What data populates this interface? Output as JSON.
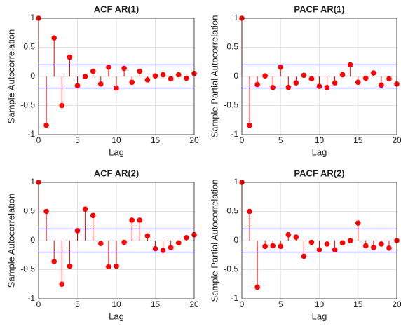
{
  "chart_data": [
    {
      "type": "stem",
      "title": "ACF AR(1)",
      "xlabel": "Lag",
      "ylabel": "Sample Autocorrelation",
      "color": "#ff0000",
      "bounds_color": "#0000ff",
      "x": [
        0,
        1,
        2,
        3,
        4,
        5,
        6,
        7,
        8,
        9,
        10,
        11,
        12,
        13,
        14,
        15,
        16,
        17,
        18,
        19,
        20
      ],
      "values": [
        1,
        -0.84,
        0.66,
        -0.5,
        0.33,
        -0.16,
        0.0,
        0.09,
        -0.13,
        0.16,
        -0.2,
        0.14,
        -0.1,
        0.09,
        -0.06,
        0.01,
        0.03,
        -0.04,
        0.03,
        -0.03,
        0.05
      ],
      "bounds": [
        0.2,
        -0.2
      ],
      "xlim": [
        0,
        20
      ],
      "ylim": [
        -1,
        1
      ],
      "xticks": [
        0,
        5,
        10,
        15,
        20
      ],
      "yticks": [
        -1,
        -0.5,
        0,
        0.5,
        1
      ],
      "grid": true
    },
    {
      "type": "stem",
      "title": "PACF AR(1)",
      "xlabel": "Lag",
      "ylabel": "Sample Partial Autocorrelation",
      "color": "#ff0000",
      "bounds_color": "#0000ff",
      "x": [
        0,
        1,
        2,
        3,
        4,
        5,
        6,
        7,
        8,
        9,
        10,
        11,
        12,
        13,
        14,
        15,
        16,
        17,
        18,
        19,
        20
      ],
      "values": [
        1,
        -0.84,
        -0.14,
        0.01,
        -0.19,
        0.16,
        -0.19,
        -0.11,
        0.02,
        -0.04,
        -0.17,
        -0.19,
        -0.11,
        0.03,
        0.2,
        -0.1,
        -0.03,
        0.06,
        -0.15,
        -0.04,
        -0.13
      ],
      "bounds": [
        0.2,
        -0.2
      ],
      "xlim": [
        0,
        20
      ],
      "ylim": [
        -1,
        1
      ],
      "xticks": [
        0,
        5,
        10,
        15,
        20
      ],
      "yticks": [
        -1,
        -0.5,
        0,
        0.5,
        1
      ],
      "grid": true
    },
    {
      "type": "stem",
      "title": "ACF AR(2)",
      "xlabel": "Lag",
      "ylabel": "Sample Autocorrelation",
      "color": "#ff0000",
      "bounds_color": "#0000ff",
      "x": [
        0,
        1,
        2,
        3,
        4,
        5,
        6,
        7,
        8,
        9,
        10,
        11,
        12,
        13,
        14,
        15,
        16,
        17,
        18,
        19,
        20
      ],
      "values": [
        1,
        0.5,
        -0.36,
        -0.75,
        -0.44,
        0.17,
        0.54,
        0.43,
        -0.05,
        -0.45,
        -0.44,
        -0.03,
        0.35,
        0.35,
        0.08,
        -0.14,
        -0.17,
        -0.12,
        -0.04,
        0.05,
        0.1
      ],
      "bounds": [
        0.2,
        -0.2
      ],
      "xlim": [
        0,
        20
      ],
      "ylim": [
        -1,
        1
      ],
      "xticks": [
        0,
        5,
        10,
        15,
        20
      ],
      "yticks": [
        -1,
        -0.5,
        0,
        0.5,
        1
      ],
      "grid": true
    },
    {
      "type": "stem",
      "title": "PACF AR(2)",
      "xlabel": "Lag",
      "ylabel": "Sample Partial Autocorrelation",
      "color": "#ff0000",
      "bounds_color": "#0000ff",
      "x": [
        0,
        1,
        2,
        3,
        4,
        5,
        6,
        7,
        8,
        9,
        10,
        11,
        12,
        13,
        14,
        15,
        16,
        17,
        18,
        19,
        20
      ],
      "values": [
        1,
        0.5,
        -0.8,
        -0.1,
        -0.09,
        -0.1,
        0.1,
        0.06,
        -0.27,
        -0.03,
        -0.16,
        -0.06,
        -0.16,
        -0.04,
        0.0,
        0.3,
        -0.09,
        -0.12,
        -0.06,
        -0.13,
        0.0
      ],
      "bounds": [
        0.2,
        -0.2
      ],
      "xlim": [
        0,
        20
      ],
      "ylim": [
        -1,
        1
      ],
      "xticks": [
        0,
        5,
        10,
        15,
        20
      ],
      "yticks": [
        -1,
        -0.5,
        0,
        0.5,
        1
      ],
      "grid": true
    }
  ]
}
